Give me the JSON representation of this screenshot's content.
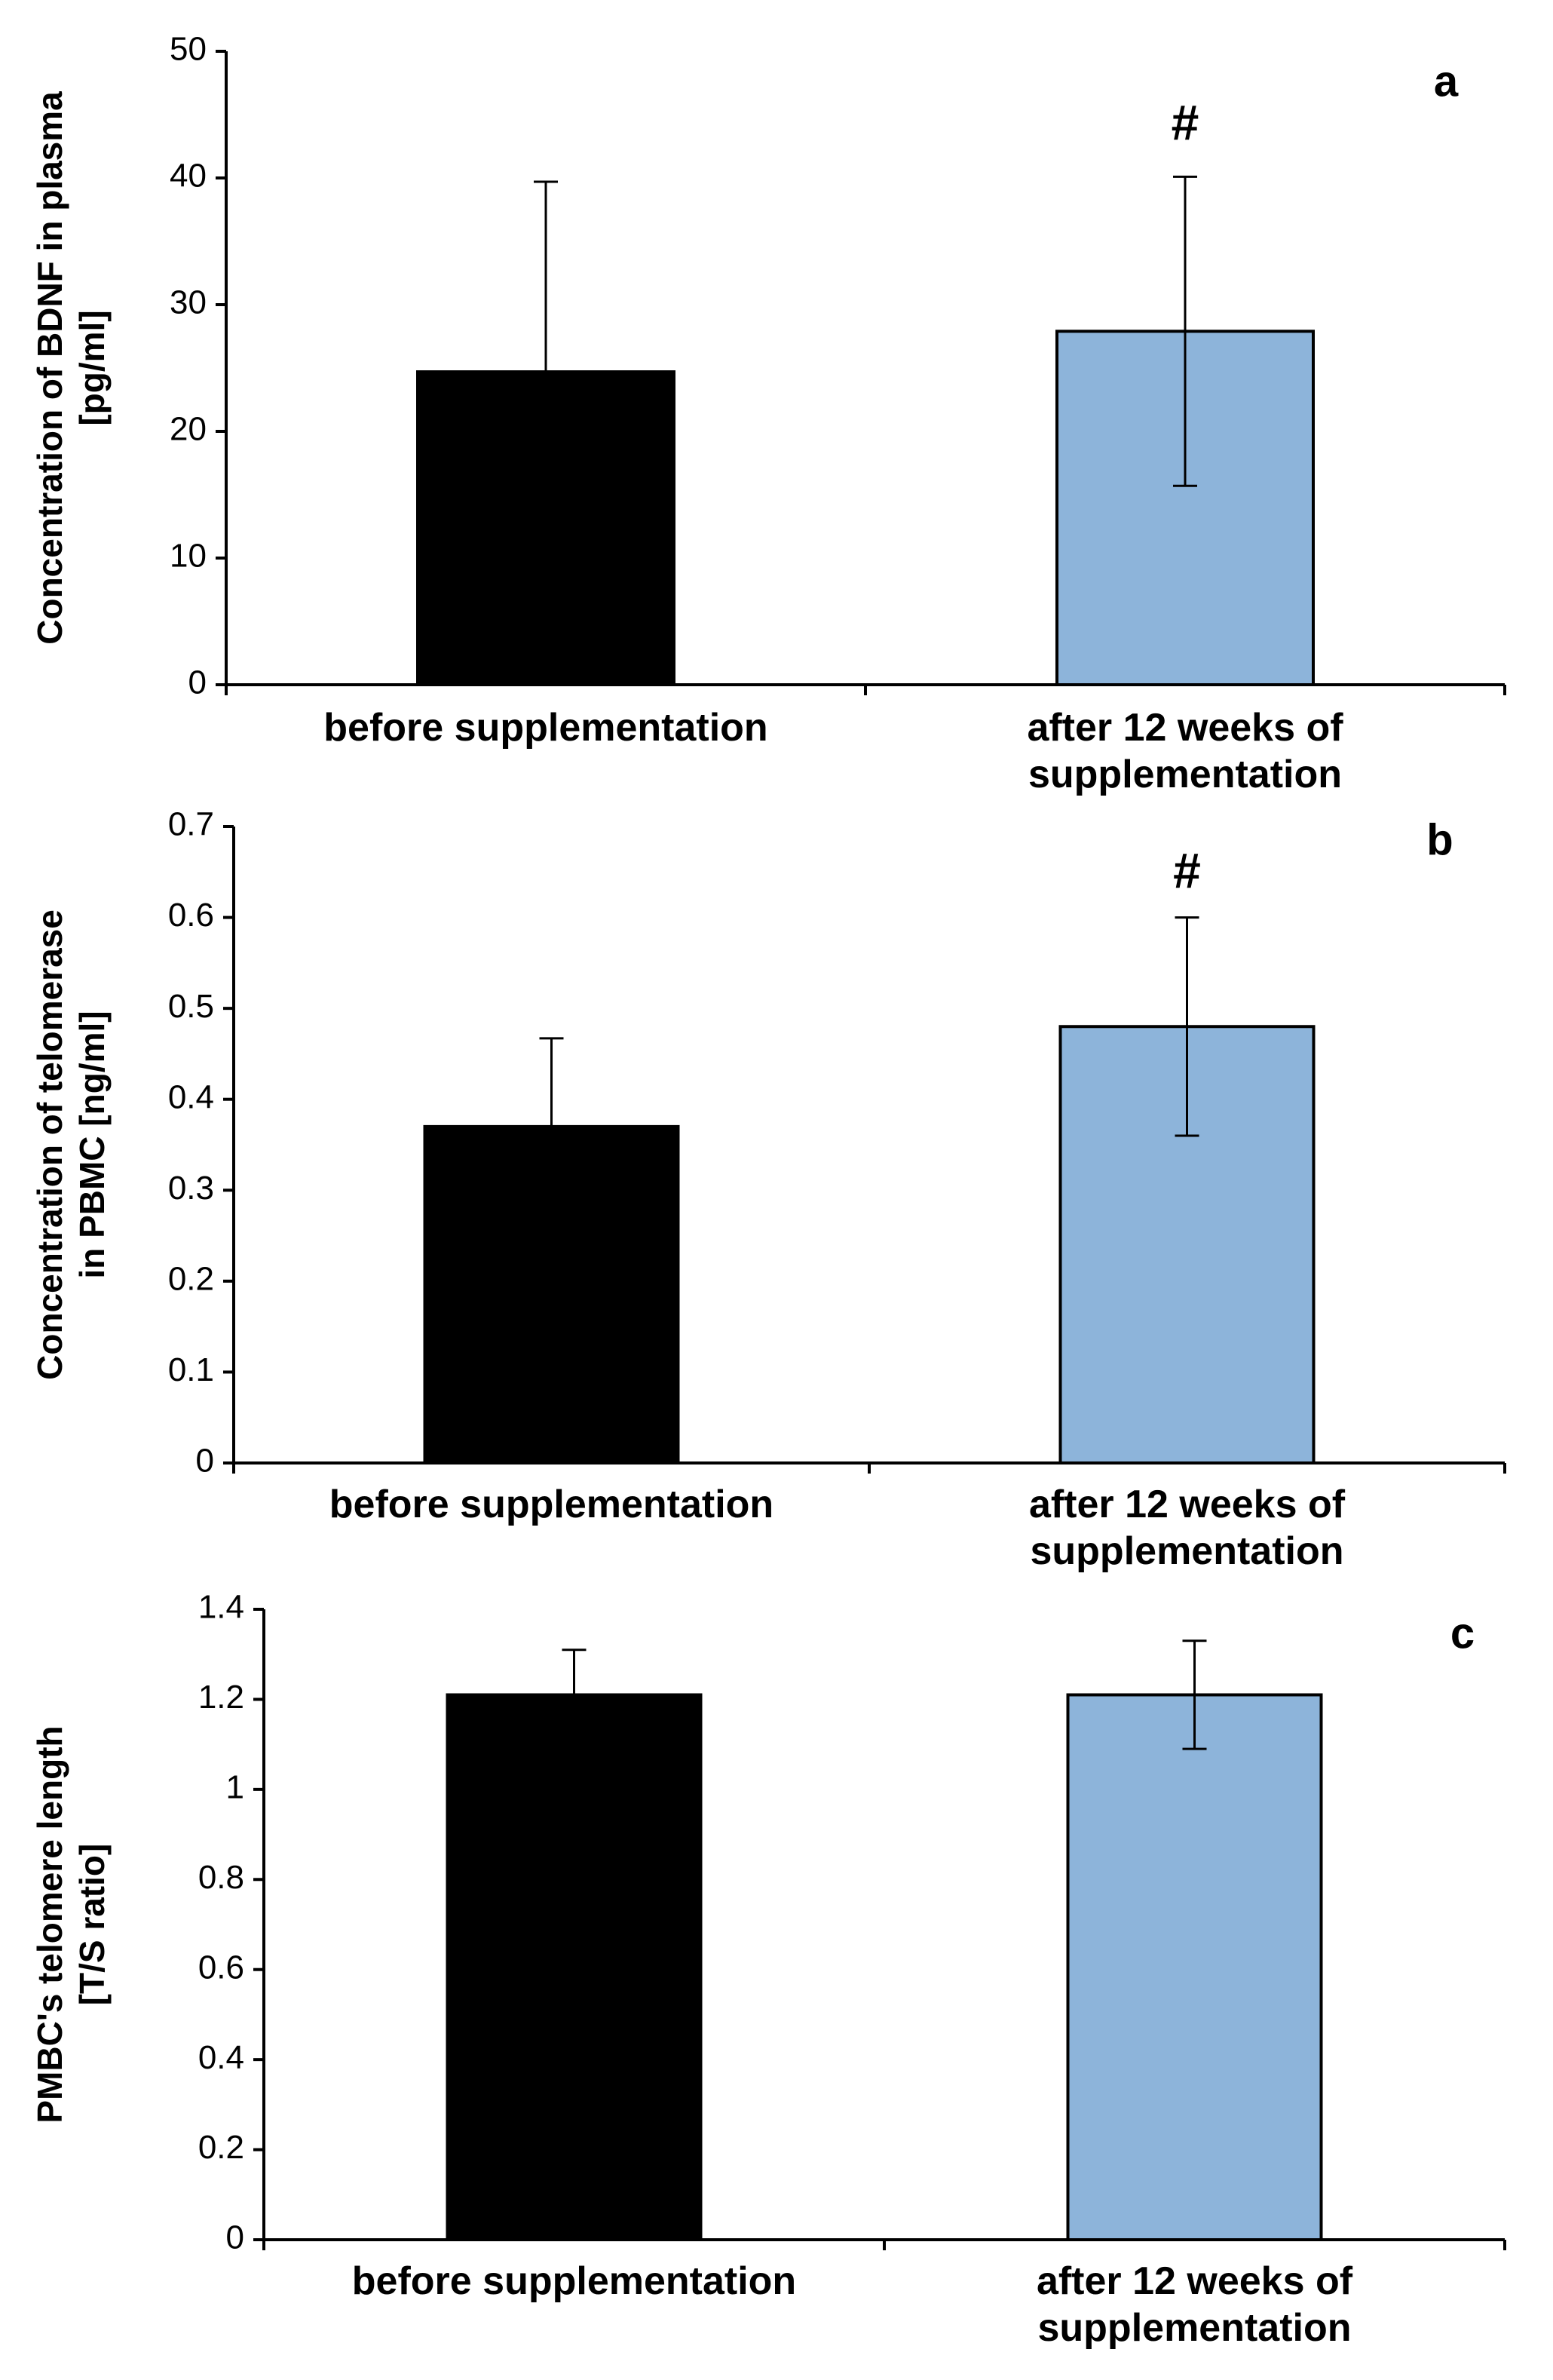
{
  "chart_data": [
    {
      "type": "bar",
      "panel_label": "a",
      "categories": [
        "before supplementation",
        "after 12 weeks of supplementation"
      ],
      "category_lines": [
        [
          "before supplementation"
        ],
        [
          "after 12 weeks of",
          "supplementation"
        ]
      ],
      "values": [
        24.7,
        27.9
      ],
      "error": [
        15.0,
        12.2
      ],
      "colors": [
        "#000000",
        "#8DB4DA"
      ],
      "significance": [
        "",
        "#"
      ],
      "ylabel_lines": [
        "Concentration of BDNF in plasma",
        "[pg/ml]"
      ],
      "ylim": [
        0,
        50
      ],
      "yticks": [
        0,
        10,
        20,
        30,
        40,
        50
      ],
      "ytick_labels": [
        "0",
        "10",
        "20",
        "30",
        "40",
        "50"
      ]
    },
    {
      "type": "bar",
      "panel_label": "b",
      "categories": [
        "before supplementation",
        "after 12 weeks of supplementation"
      ],
      "category_lines": [
        [
          "before supplementation"
        ],
        [
          "after 12 weeks of",
          "supplementation"
        ]
      ],
      "values": [
        0.37,
        0.48
      ],
      "error": [
        0.097,
        0.12
      ],
      "colors": [
        "#000000",
        "#8DB4DA"
      ],
      "significance": [
        "",
        "#"
      ],
      "ylabel_lines": [
        "Concentration of telomerase",
        "in PBMC  [ng/ml]"
      ],
      "ylim": [
        0,
        0.7
      ],
      "yticks": [
        0,
        0.1,
        0.2,
        0.3,
        0.4,
        0.5,
        0.6,
        0.7
      ],
      "ytick_labels": [
        "0",
        "0.1",
        "0.2",
        "0.3",
        "0.4",
        "0.5",
        "0.6",
        "0.7"
      ]
    },
    {
      "type": "bar",
      "panel_label": "c",
      "categories": [
        "before supplementation",
        "after 12 weeks of supplementation"
      ],
      "category_lines": [
        [
          "before supplementation"
        ],
        [
          "after 12 weeks of",
          "supplementation"
        ]
      ],
      "values": [
        1.21,
        1.21
      ],
      "error": [
        0.1,
        0.12
      ],
      "colors": [
        "#000000",
        "#8DB4DA"
      ],
      "significance": [
        "",
        ""
      ],
      "ylabel_lines": [
        "PMBC's telomere length",
        "[T/S ratio]"
      ],
      "ylim": [
        0,
        1.4
      ],
      "yticks": [
        0,
        0.2,
        0.4,
        0.6,
        0.8,
        1,
        1.2,
        1.4
      ],
      "ytick_labels": [
        "0",
        "0.2",
        "0.4",
        "0.6",
        "0.8",
        "1",
        "1.2",
        "1.4"
      ]
    }
  ]
}
